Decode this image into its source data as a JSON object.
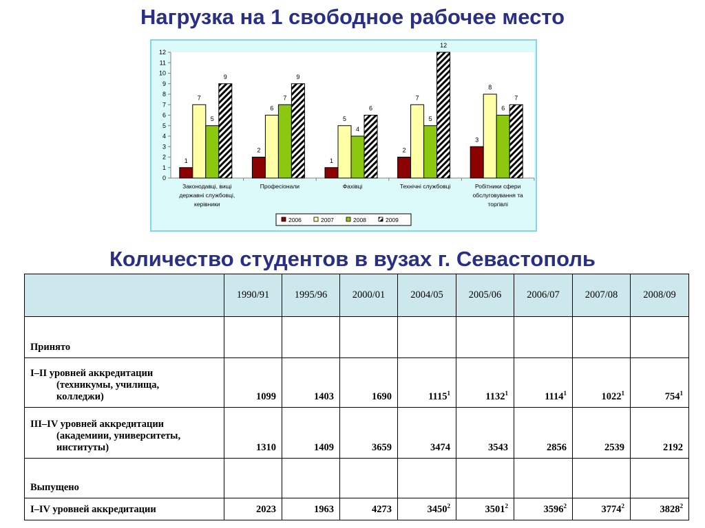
{
  "title1": "Нагрузка на 1 свободное рабочее место",
  "title2": "Количество студентов в  вузах г. Севастополь",
  "colors": {
    "title": "#2a2f86",
    "chart_bg": "#ddfafa",
    "chart_border": "#7ed7ec",
    "header_bg": "#cce8ec",
    "s2006": "#8b0000",
    "s2007": "#ffffa8",
    "s2008": "#8cc810",
    "s2009": "hatched black-white"
  },
  "chart_data": {
    "type": "bar",
    "categories": [
      [
        "Законодавці, вищі",
        "державні службовці,",
        "керівники"
      ],
      [
        "Професіонали"
      ],
      [
        "Фахівці"
      ],
      [
        "Технічні службовці"
      ],
      [
        "Робітники сфери",
        "обслуговування та",
        "торгівлі"
      ]
    ],
    "series": [
      {
        "name": "2006",
        "values": [
          1,
          2,
          1,
          2,
          3
        ],
        "color": "#8b0000"
      },
      {
        "name": "2007",
        "values": [
          7,
          6,
          5,
          7,
          8
        ],
        "color": "#ffffa8"
      },
      {
        "name": "2008",
        "values": [
          5,
          7,
          4,
          5,
          6
        ],
        "color": "#8cc810"
      },
      {
        "name": "2009",
        "values": [
          9,
          9,
          6,
          12,
          7
        ],
        "color": "hatched"
      }
    ],
    "ylim": [
      0,
      12
    ],
    "yticks": [
      0,
      1,
      2,
      3,
      4,
      5,
      6,
      7,
      8,
      9,
      10,
      11,
      12
    ],
    "grid": false,
    "legend": "bottom",
    "data_labels": true
  },
  "table": {
    "corner": "",
    "years": [
      "1990/91",
      "1995/96",
      "2000/01",
      "2004/05",
      "2005/06",
      "2006/07",
      "2007/08",
      "2008/09"
    ],
    "sections": {
      "accepted": "Принято",
      "graduated": "Выпущено"
    },
    "rows": {
      "acc1": {
        "main": "I–II уровней аккредитации",
        "sub1": "(техникумы, училища,",
        "sub2": "колледжи)",
        "values": [
          "1099",
          "1403",
          "1690",
          "1115",
          "1132",
          "1114",
          "1022",
          "754"
        ],
        "notes": [
          "",
          "",
          "",
          "1",
          "1",
          "1",
          "1",
          "1"
        ]
      },
      "acc2": {
        "main": "III–IV уровней аккредитации",
        "sub1": "(академиии, университеты,",
        "sub2": "институты)",
        "values": [
          "1310",
          "1409",
          "3659",
          "3474",
          "3543",
          "2856",
          "2539",
          "2192"
        ],
        "notes": [
          "",
          "",
          "",
          "",
          "",
          "",
          "",
          ""
        ]
      },
      "total": {
        "main": "I–IV уровней аккредитации",
        "values": [
          "2023",
          "1963",
          "4273",
          "3450",
          "3501",
          "3596",
          "3774",
          "3828"
        ],
        "notes": [
          "",
          "",
          "",
          "2",
          "2",
          "2",
          "2",
          "2"
        ]
      }
    }
  }
}
